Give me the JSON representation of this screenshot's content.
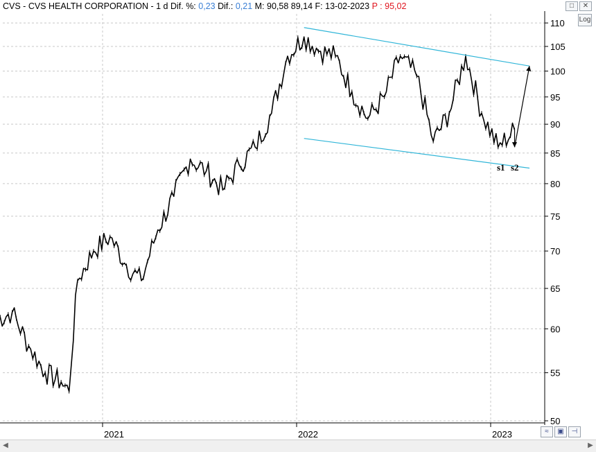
{
  "header": {
    "symbol": "CVS",
    "sep1": " - ",
    "company": "CVS HEALTH CORPORATION",
    "sep2": " - ",
    "timeframe": "1 d",
    "dif_pct_label": "Dif. %:",
    "dif_pct_value": "0,23",
    "dif_label": "Dif.:",
    "dif_value": "0,21",
    "max_label": "M:",
    "max_value": "90,58",
    "min_value": "89,14",
    "date_label": "F:",
    "date_value": "13-02-2023",
    "price_label": "P :",
    "price_value": "95,02"
  },
  "controls": {
    "log_label": "Log",
    "restore_icon": "restore-icon",
    "close_icon": "close-icon",
    "save_icon": "save-icon",
    "pin_icon": "pin-icon",
    "zoom_icon": "zoom-fit-icon"
  },
  "annotations": {
    "s1": "s1",
    "s2": "s2"
  },
  "colors": {
    "price_line": "#000000",
    "channel": "#2fb5d8",
    "grid": "#c8c8c8",
    "blue_value": "#3a7fd5",
    "red_value": "#e0141e"
  },
  "chart_data": {
    "type": "line",
    "title": "CVS - CVS HEALTH CORPORATION - 1 d",
    "y_scale": "log",
    "ylim": [
      50,
      112
    ],
    "y_ticks": [
      50,
      55,
      60,
      65,
      70,
      75,
      80,
      85,
      90,
      95,
      100,
      105,
      110
    ],
    "x_ticks": [
      "2021",
      "2022",
      "2023"
    ],
    "series": [
      {
        "name": "CVS",
        "x": [
          "2020-06",
          "2020-07",
          "2020-08",
          "2020-09",
          "2020-10",
          "2020-10-30",
          "2020-11",
          "2020-12",
          "2021-01",
          "2021-02",
          "2021-03",
          "2021-04",
          "2021-05",
          "2021-06",
          "2021-07",
          "2021-08",
          "2021-09",
          "2021-10",
          "2021-11",
          "2021-12",
          "2022-01",
          "2022-02",
          "2022-03",
          "2022-04",
          "2022-05",
          "2022-06",
          "2022-07",
          "2022-08",
          "2022-09",
          "2022-10",
          "2022-11",
          "2022-12",
          "2023-01",
          "2023-02"
        ],
        "values": [
          61,
          62,
          58,
          55,
          54,
          53,
          66,
          70,
          72,
          68,
          66,
          73,
          78,
          84,
          82,
          79,
          83,
          86,
          92,
          103,
          107,
          104,
          103,
          96,
          91,
          95,
          103,
          99,
          87,
          92,
          103,
          92,
          86,
          89
        ]
      }
    ],
    "channel": {
      "upper": [
        {
          "x": "2022-01",
          "y": 109
        },
        {
          "x": "2023-03",
          "y": 101
        }
      ],
      "lower": [
        {
          "x": "2022-01",
          "y": 87.5
        },
        {
          "x": "2023-03",
          "y": 82.5
        }
      ]
    },
    "projection_arrows": [
      {
        "from": {
          "x": "2023-02",
          "y": 89
        },
        "to": {
          "x": "2023-02-15",
          "y": 86
        }
      },
      {
        "from": {
          "x": "2023-02-15",
          "y": 86
        },
        "to": {
          "x": "2023-03",
          "y": 101
        }
      }
    ]
  }
}
